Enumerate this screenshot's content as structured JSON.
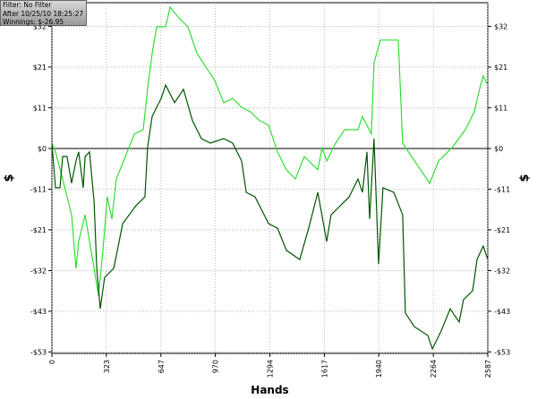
{
  "chart_data": {
    "type": "line",
    "info": [
      "Filter: No Filter",
      "After 10/25/10 18:25:27",
      "Winnings: $-26.95"
    ],
    "xlabel": "Hands",
    "ylabel": "$",
    "xlim": [
      0,
      2587
    ],
    "xticks": [
      0,
      323,
      647,
      970,
      1294,
      1617,
      1940,
      2264,
      2587
    ],
    "ylim": [
      -53.7,
      38.2
    ],
    "yticks": [
      {
        "value": 32,
        "label": "$32"
      },
      {
        "value": 21.33,
        "label": "$21"
      },
      {
        "value": 10.67,
        "label": "$11"
      },
      {
        "value": 0,
        "label": "$0"
      },
      {
        "value": -10.67,
        "label": "-$11"
      },
      {
        "value": -21.33,
        "label": "-$21"
      },
      {
        "value": -32,
        "label": "-$32"
      },
      {
        "value": -42.67,
        "label": "-$43"
      },
      {
        "value": -53.33,
        "label": "-$53"
      }
    ],
    "grid": true,
    "zero_line": true,
    "series": [
      {
        "color": "#33dd33",
        "x": [
          0,
          21,
          64,
          117,
          143,
          159,
          197,
          250,
          276,
          303,
          329,
          356,
          382,
          436,
          489,
          542,
          568,
          595,
          622,
          675,
          701,
          754,
          807,
          861,
          914,
          967,
          1020,
          1073,
          1126,
          1179,
          1232,
          1286,
          1339,
          1392,
          1445,
          1498,
          1578,
          1604,
          1631,
          1684,
          1737,
          1817,
          1843,
          1896,
          1912,
          1950,
          2029,
          2056,
          2082,
          2135,
          2242,
          2295,
          2375,
          2454,
          2507,
          2544,
          2560,
          2587
        ],
        "values": [
          1.4,
          -0.9,
          -8.0,
          -17.4,
          -31.4,
          -24.4,
          -17.4,
          -31.4,
          -38.5,
          -26.7,
          -12.7,
          -18.5,
          -8.0,
          -2.1,
          3.8,
          4.9,
          15.5,
          24.9,
          31.9,
          31.9,
          37.1,
          34.2,
          31.9,
          24.9,
          21.3,
          17.8,
          12.0,
          13.1,
          10.8,
          9.6,
          7.3,
          6.1,
          -0.9,
          -5.6,
          -8.0,
          -2.1,
          -5.6,
          0.2,
          -3.3,
          1.4,
          4.9,
          4.9,
          8.4,
          3.8,
          22.5,
          28.4,
          28.4,
          28.4,
          1.4,
          -2.1,
          -9.1,
          -3.3,
          0.2,
          4.9,
          9.6,
          16.6,
          19.0,
          16.6
        ]
      },
      {
        "color": "#005500",
        "x": [
          0,
          21,
          48,
          64,
          90,
          117,
          143,
          159,
          186,
          197,
          223,
          250,
          266,
          287,
          313,
          367,
          420,
          499,
          552,
          568,
          595,
          648,
          675,
          728,
          781,
          834,
          887,
          940,
          1020,
          1073,
          1126,
          1153,
          1206,
          1286,
          1339,
          1392,
          1471,
          1524,
          1578,
          1631,
          1657,
          1764,
          1817,
          1843,
          1870,
          1886,
          1912,
          1939,
          1965,
          2029,
          2082,
          2098,
          2151,
          2231,
          2258,
          2311,
          2364,
          2417,
          2443,
          2497,
          2523,
          2560,
          2587
        ],
        "values": [
          1.4,
          -10.3,
          -10.3,
          -2.1,
          -2.1,
          -9.1,
          -3.3,
          -0.9,
          -10.3,
          -2.1,
          -0.9,
          -13.8,
          -31.4,
          -42.0,
          -33.8,
          -31.4,
          -19.7,
          -15.0,
          -12.7,
          0.2,
          8.4,
          13.1,
          16.6,
          12.0,
          15.5,
          7.3,
          2.6,
          1.4,
          2.6,
          1.4,
          -3.3,
          -11.5,
          -12.7,
          -19.7,
          -20.9,
          -26.7,
          -29.1,
          -20.9,
          -11.5,
          -24.4,
          -17.4,
          -12.7,
          -8.0,
          -11.5,
          -0.9,
          -18.5,
          2.6,
          -30.3,
          -10.3,
          -11.5,
          -17.4,
          -43.1,
          -46.7,
          -49.0,
          -52.5,
          -47.8,
          -42.0,
          -45.5,
          -39.6,
          -37.3,
          -29.1,
          -25.6,
          -29.1
        ]
      }
    ]
  }
}
